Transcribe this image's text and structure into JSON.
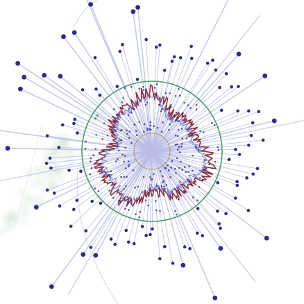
{
  "image": {
    "description_free": true,
    "colors": {
      "background": "#ffffff",
      "spoke": "#b9bde6",
      "dot": "#2e2c8a",
      "ring": "#4c9a63",
      "wave_outer": "#8b2f3a",
      "wave_inner": "#6a6fc4",
      "inner_ring": "#a08a2a",
      "haze": "#cfe1cf",
      "faint_arc": "#c9cbe0"
    },
    "icons": [
      "radial-burst-graphic"
    ]
  }
}
